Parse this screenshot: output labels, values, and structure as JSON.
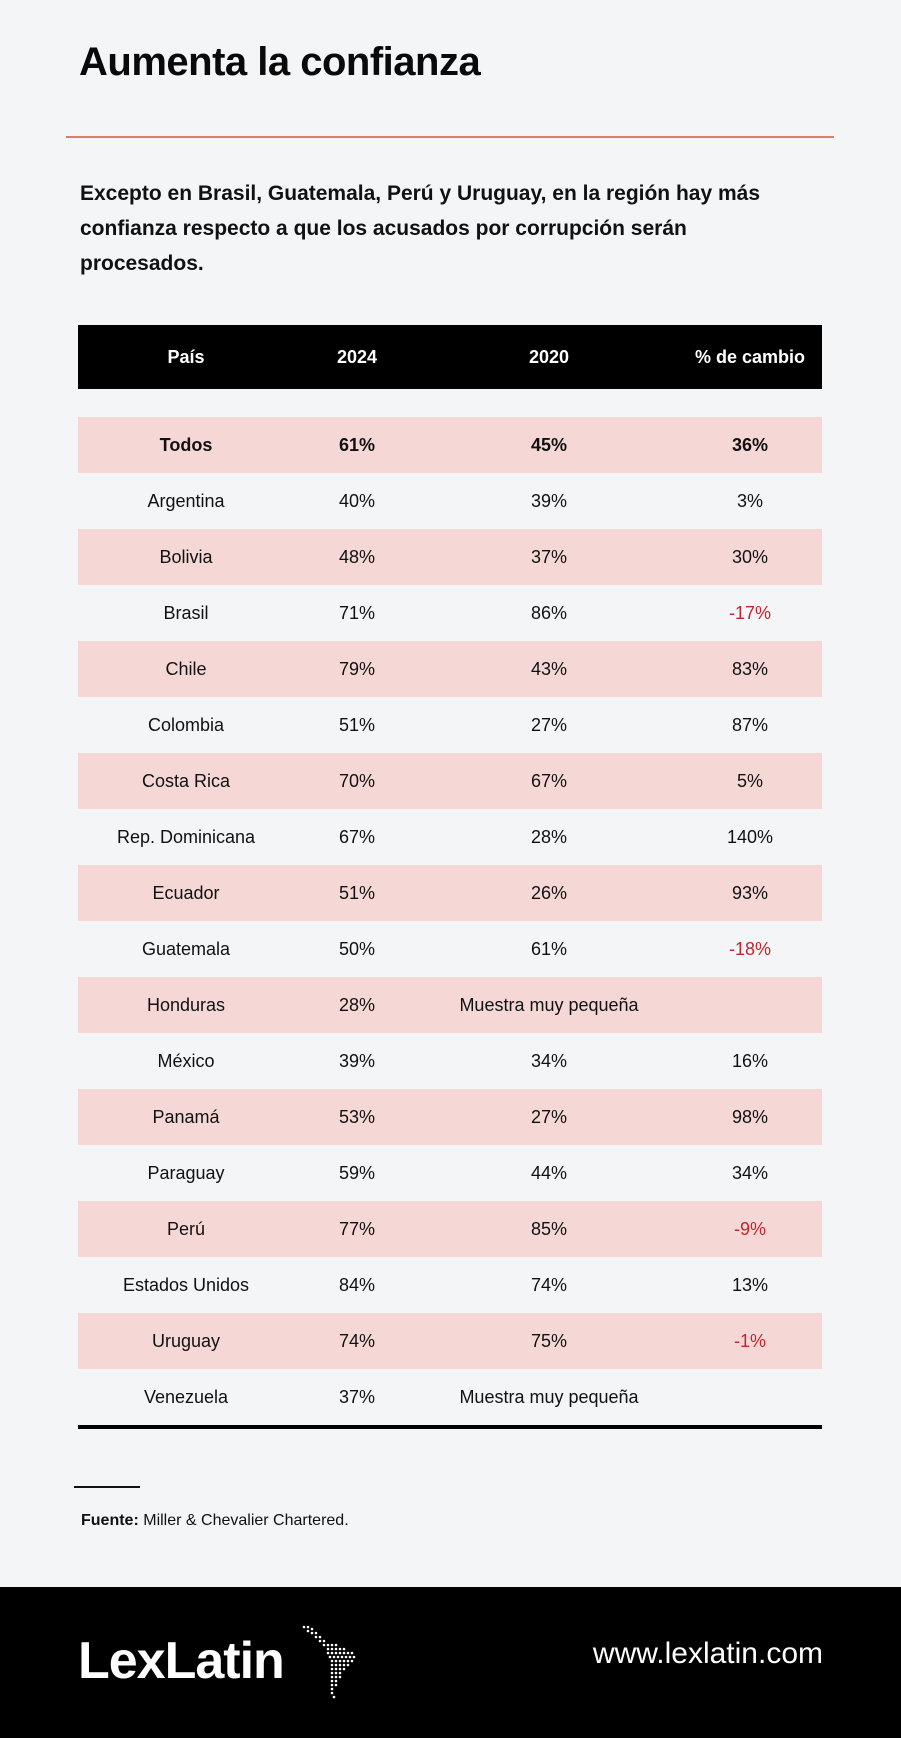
{
  "title": "Aumenta la confianza",
  "subtitle": "Excepto en Brasil, Guatemala, Perú y Uruguay, en la región hay más confianza respecto a que los acusados por corrupción serán procesados.",
  "table": {
    "headers": [
      "País",
      "2024",
      "2020",
      "% de cambio"
    ],
    "total": {
      "country": "Todos",
      "y2024": "61%",
      "y2020": "45%",
      "change": "36%"
    },
    "rows": [
      {
        "country": "Argentina",
        "y2024": "40%",
        "y2020": "39%",
        "change": "3%"
      },
      {
        "country": "Bolivia",
        "y2024": "48%",
        "y2020": "37%",
        "change": "30%"
      },
      {
        "country": "Brasil",
        "y2024": "71%",
        "y2020": "86%",
        "change": "-17%"
      },
      {
        "country": "Chile",
        "y2024": "79%",
        "y2020": "43%",
        "change": "83%"
      },
      {
        "country": "Colombia",
        "y2024": "51%",
        "y2020": "27%",
        "change": "87%"
      },
      {
        "country": "Costa Rica",
        "y2024": "70%",
        "y2020": "67%",
        "change": "5%"
      },
      {
        "country": "Rep. Dominicana",
        "y2024": "67%",
        "y2020": "28%",
        "change": "140%"
      },
      {
        "country": "Ecuador",
        "y2024": "51%",
        "y2020": "26%",
        "change": "93%"
      },
      {
        "country": "Guatemala",
        "y2024": "50%",
        "y2020": "61%",
        "change": "-18%"
      },
      {
        "country": "Honduras",
        "y2024": "28%",
        "y2020": "Muestra muy pequeña",
        "change": ""
      },
      {
        "country": "México",
        "y2024": "39%",
        "y2020": "34%",
        "change": "16%"
      },
      {
        "country": "Panamá",
        "y2024": "53%",
        "y2020": "27%",
        "change": "98%"
      },
      {
        "country": "Paraguay",
        "y2024": "59%",
        "y2020": "44%",
        "change": "34%"
      },
      {
        "country": "Perú",
        "y2024": "77%",
        "y2020": "85%",
        "change": "-9%"
      },
      {
        "country": "Estados Unidos",
        "y2024": "84%",
        "y2020": "74%",
        "change": "13%"
      },
      {
        "country": "Uruguay",
        "y2024": "74%",
        "y2020": "75%",
        "change": "-1%"
      },
      {
        "country": "Venezuela",
        "y2024": "37%",
        "y2020": "Muestra muy pequeña",
        "change": ""
      }
    ]
  },
  "source": {
    "label": "Fuente:",
    "text": "Miller & Chevalier Chartered."
  },
  "footer": {
    "logo": "LexLatin",
    "url": "www.lexlatin.com"
  },
  "colors": {
    "accent_rule": "#e07a6e",
    "row_shade": "#f5d8d6",
    "negative": "#c0262d",
    "header_bg": "#000000"
  }
}
